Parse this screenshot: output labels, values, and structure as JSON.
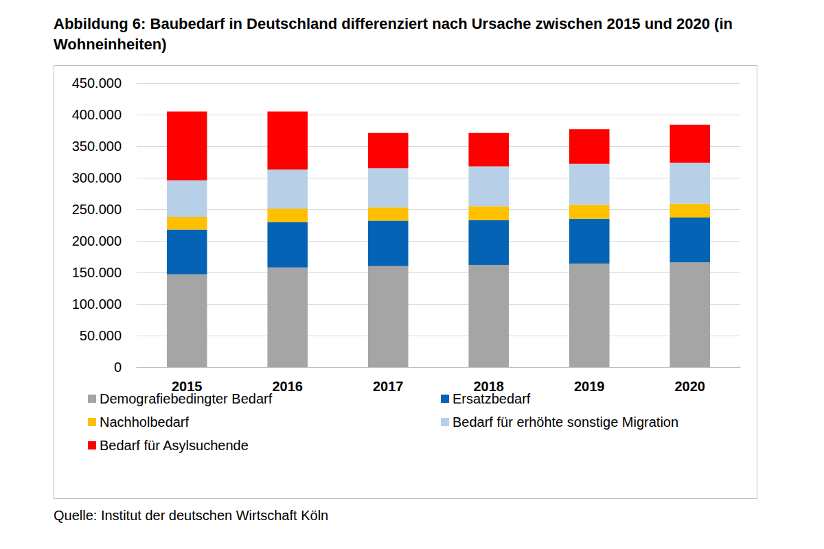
{
  "chart_data": {
    "type": "bar",
    "title": "Abbildung 6: Baubedarf in Deutschland differenziert nach Ursache zwischen 2015 und 2020 (in Wohneinheiten)",
    "source": "Quelle: Institut der deutschen Wirtschaft Köln",
    "categories": [
      "2015",
      "2016",
      "2017",
      "2018",
      "2019",
      "2020"
    ],
    "stacked": true,
    "grid": true,
    "legend": "bottom",
    "ylim": [
      0,
      450000
    ],
    "yticks": [
      0,
      {
        "value": 50000,
        "label": "50.000"
      },
      {
        "value": 100000,
        "label": "100.000"
      },
      {
        "value": 150000,
        "label": "150.000"
      },
      {
        "value": 200000,
        "label": "200.000"
      },
      {
        "value": 250000,
        "label": "250.000"
      },
      {
        "value": 300000,
        "label": "300.000"
      },
      {
        "value": 350000,
        "label": "350.000"
      },
      {
        "value": 400000,
        "label": "400.000"
      },
      {
        "value": 450000,
        "label": "450.000"
      }
    ],
    "series": [
      {
        "name": "Demografiebedingter Bedarf",
        "color": "#a5a5a5",
        "values": [
          147000,
          158000,
          160000,
          162000,
          164000,
          166000
        ]
      },
      {
        "name": "Ersatzbedarf",
        "color": "#0563b5",
        "values": [
          71000,
          72000,
          72000,
          71000,
          71000,
          71000
        ]
      },
      {
        "name": "Nachholbedarf",
        "color": "#ffc000",
        "values": [
          20000,
          21000,
          21000,
          22000,
          22000,
          22000
        ]
      },
      {
        "name": "Bedarf für erhöhte sonstige Migration",
        "color": "#b7d0e8",
        "values": [
          58000,
          62000,
          62000,
          63000,
          65000,
          65000
        ]
      },
      {
        "name": "Bedarf für Asylsuchende",
        "color": "#ff0000",
        "values": [
          109000,
          92000,
          56000,
          53000,
          55000,
          60000
        ]
      }
    ]
  }
}
